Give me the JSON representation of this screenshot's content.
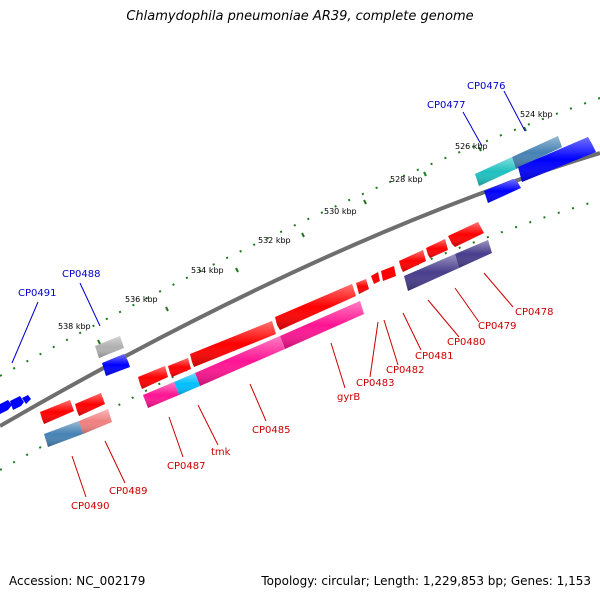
{
  "title": "Chlamydophila pneumoniae AR39, complete genome",
  "footer": {
    "accession": "Accession: NC_002179",
    "stats": "Topology: circular; Length: 1,229,853 bp; Genes: 1,153"
  },
  "colors": {
    "backbone": "#6e6e6e",
    "tick": "#1f7a1f",
    "label_top": "#0000cc",
    "label_bottom": "#cc0000",
    "red": "#ff0000",
    "blue": "#0000ff",
    "magenta": "#ff1493",
    "cyan": "#00bfff",
    "steel": "#4682b4",
    "lightred": "#f08080",
    "teal": "#20c0c0",
    "slate": "#483d8b",
    "gray": "#a9a9a9"
  },
  "ruler": {
    "unit": "kbp",
    "labels": [
      "524 kbp",
      "526 kbp",
      "528 kbp",
      "530 kbp",
      "532 kbp",
      "534 kbp",
      "536 kbp",
      "538 kbp"
    ]
  },
  "gene_labels_top": [
    "CP0476",
    "CP0477",
    "CP0488",
    "CP0491"
  ],
  "gene_labels_bottom": [
    "CP0478",
    "CP0479",
    "CP0480",
    "CP0481",
    "CP0482",
    "CP0483",
    "gyrB",
    "CP0485",
    "tmk",
    "CP0487",
    "CP0489",
    "CP0490"
  ]
}
